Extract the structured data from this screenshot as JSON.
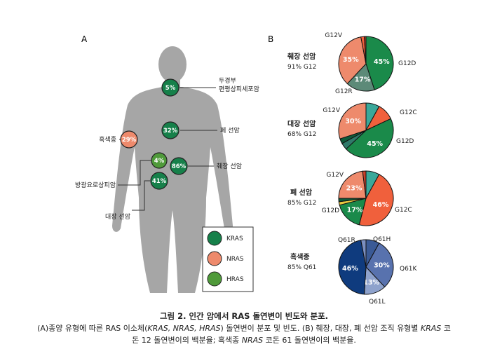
{
  "panel_a": {
    "label": "A",
    "sites": [
      {
        "name": "두경부\n편평상피세포암",
        "pct": "5%",
        "gene": "KRAS"
      },
      {
        "name": "흑색종",
        "pct": "29%",
        "gene": "NRAS"
      },
      {
        "name": "폐 선암",
        "pct": "32%",
        "gene": "KRAS"
      },
      {
        "name": "췌장 선암",
        "pct": "86%",
        "gene": "KRAS"
      },
      {
        "name": "방광요로상피암",
        "pct": "4%",
        "gene": "HRAS"
      },
      {
        "name": "대장 선암",
        "pct": "41%",
        "gene": "KRAS"
      }
    ],
    "legend": [
      {
        "label": "KRAS",
        "color": "#16804a"
      },
      {
        "label": "NRAS",
        "color": "#ee8a6c"
      },
      {
        "label": "HRAS",
        "color": "#4f9a3a"
      }
    ]
  },
  "panel_b": {
    "label": "B"
  },
  "chart_data": [
    {
      "type": "pie",
      "title": "췌장 선암",
      "subtitle": "91% G12",
      "slices": [
        {
          "label": "G12D",
          "value": 45,
          "value_label": "45%",
          "color": "#1a8a4a"
        },
        {
          "label": "G12R",
          "value": 17,
          "value_label": "17%",
          "color": "#5c8a78"
        },
        {
          "label": "",
          "value": 35,
          "value_label": "35%",
          "color": "#ee8a6c"
        },
        {
          "label": "G12V",
          "value": 2,
          "value_label": "",
          "color": "#f0603c"
        },
        {
          "label": "",
          "value": 1,
          "value_label": "",
          "color": "#c8402a"
        }
      ]
    },
    {
      "type": "pie",
      "title": "대장 선암",
      "subtitle": "68% G12",
      "slices": [
        {
          "label": "",
          "value": 8,
          "value_label": "",
          "color": "#3aa89a"
        },
        {
          "label": "G12C",
          "value": 10,
          "value_label": "",
          "color": "#f0603c"
        },
        {
          "label": "G12D",
          "value": 45,
          "value_label": "45%",
          "color": "#1a8a4a"
        },
        {
          "label": "",
          "value": 4,
          "value_label": "",
          "color": "#2f7a6a"
        },
        {
          "label": "",
          "value": 3,
          "value_label": "",
          "color": "#0f5a3a"
        },
        {
          "label": "G12V",
          "value": 30,
          "value_label": "30%",
          "color": "#ee8a6c"
        }
      ]
    },
    {
      "type": "pie",
      "title": "폐 선암",
      "subtitle": "85% G12",
      "slices": [
        {
          "label": "",
          "value": 8,
          "value_label": "",
          "color": "#3aa89a"
        },
        {
          "label": "G12C",
          "value": 46,
          "value_label": "46%",
          "color": "#f0603c"
        },
        {
          "label": "G12D",
          "value": 17,
          "value_label": "17%",
          "color": "#1a8a4a"
        },
        {
          "label": "",
          "value": 2,
          "value_label": "",
          "color": "#e8c840"
        },
        {
          "label": "",
          "value": 2,
          "value_label": "",
          "color": "#0f5a3a"
        },
        {
          "label": "G12V",
          "value": 23,
          "value_label": "23%",
          "color": "#ee8a6c"
        },
        {
          "label": "",
          "value": 2,
          "value_label": "",
          "color": "#c8402a"
        }
      ]
    },
    {
      "type": "pie",
      "title": "흑색종",
      "subtitle": "85% Q61",
      "slices": [
        {
          "label": "Q61H",
          "value": 8,
          "value_label": "",
          "color": "#3a5a96"
        },
        {
          "label": "Q61K",
          "value": 30,
          "value_label": "30%",
          "color": "#5872ae"
        },
        {
          "label": "Q61L",
          "value": 13,
          "value_label": "13%",
          "color": "#8ea2cc"
        },
        {
          "label": "Q61R",
          "value": 46,
          "value_label": "46%",
          "color": "#0f3b7e"
        },
        {
          "label": "",
          "value": 3,
          "value_label": "",
          "color": "#7a8fc0"
        }
      ]
    }
  ],
  "caption": {
    "title": "그림 2. 인간 암에서 RAS 돌연변이 빈도와 분포.",
    "line1_a": "(A)종양 유형에 따른 RAS 이소체(",
    "line1_genes": "KRAS, NRAS, HRAS",
    "line1_b": ") 돌연변이 분포 및 빈도. (B) 췌장, 대장, 폐 선암 조직 유형별 ",
    "line1_gene2": "KRAS",
    "line1_c": " 코",
    "line2_a": "돈 12 돌연변이의 백분율; 흑색종 ",
    "line2_gene": "NRAS",
    "line2_b": " 코돈 61 돌연변이의 백분율."
  }
}
